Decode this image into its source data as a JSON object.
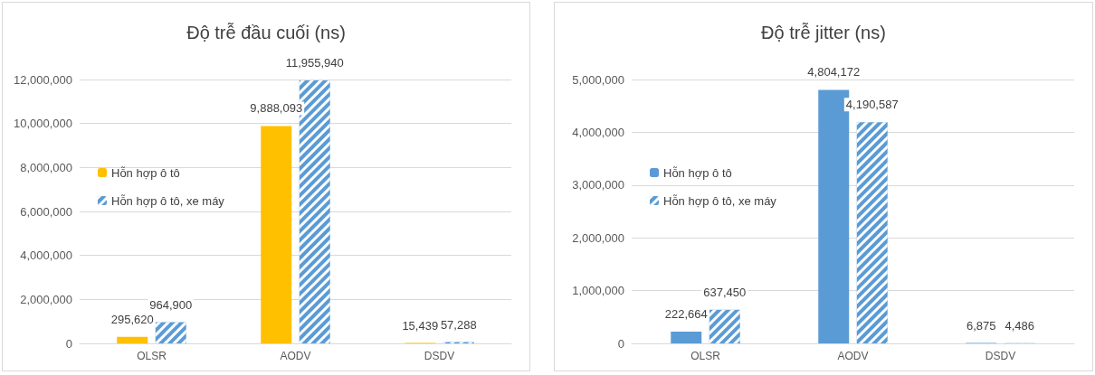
{
  "chart_data": [
    {
      "type": "bar",
      "title": "Độ trễ đầu cuối (ns)",
      "categories": [
        "OLSR",
        "AODV",
        "DSDV"
      ],
      "series": [
        {
          "name": "Hỗn hợp ô tô",
          "color": "#ffc000",
          "values": [
            295620,
            9888093,
            15439
          ],
          "value_labels": [
            "295,620",
            "9,888,093",
            "15,439"
          ]
        },
        {
          "name": "Hỗn hợp ô tô, xe máy",
          "color": "#5b9bd5",
          "values": [
            964900,
            11955940,
            57288
          ],
          "value_labels": [
            "964,900",
            "11,955,940",
            "57,288"
          ]
        }
      ],
      "ylim": [
        0,
        12000000
      ],
      "yticks": [
        0,
        {
          "value": 2000000,
          "label": "2,000,000"
        },
        {
          "value": 4000000,
          "label": "4,000,000"
        },
        {
          "value": 6000000,
          "label": "6,000,000"
        },
        {
          "value": 8000000,
          "label": "8,000,000"
        },
        {
          "value": 10000000,
          "label": "10,000,000"
        },
        {
          "value": 12000000,
          "label": "12,000,000"
        }
      ],
      "grid": "y",
      "legend": "left"
    },
    {
      "type": "bar",
      "title": "Độ trễ jitter (ns)",
      "categories": [
        "OLSR",
        "AODV",
        "DSDV"
      ],
      "series": [
        {
          "name": "Hỗn hợp ô tô",
          "color": "#5b9bd5",
          "values": [
            222664,
            4804172,
            6875
          ],
          "value_labels": [
            "222,664",
            "4,804,172",
            "6,875"
          ]
        },
        {
          "name": "Hỗn hợp ô tô, xe máy",
          "color": "#5b9bd5",
          "values": [
            637450,
            4190587,
            4486
          ],
          "value_labels": [
            "637,450",
            "4,190,587",
            "4,486"
          ]
        }
      ],
      "ylim": [
        0,
        5000000
      ],
      "yticks": [
        0,
        {
          "value": 1000000,
          "label": "1,000,000"
        },
        {
          "value": 2000000,
          "label": "2,000,000"
        },
        {
          "value": 3000000,
          "label": "3,000,000"
        },
        {
          "value": 4000000,
          "label": "4,000,000"
        },
        {
          "value": 5000000,
          "label": "5,000,000"
        }
      ],
      "grid": "y",
      "legend": "left"
    }
  ]
}
